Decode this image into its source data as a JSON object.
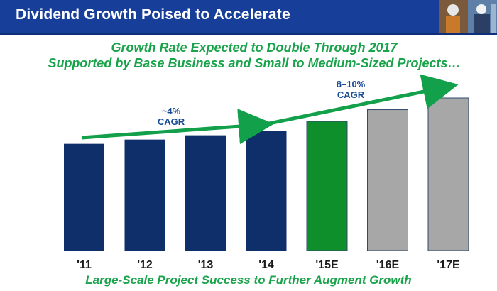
{
  "header": {
    "title": "Dividend Growth Poised to Accelerate"
  },
  "subtitle": {
    "line1": "Growth Rate Expected to Double Through 2017",
    "line2": "Supported by Base Business and Small to Medium-Sized Projects…"
  },
  "footer": "Large-Scale Project Success to Further Augment Growth",
  "colors": {
    "header": "#173f99",
    "actual": "#0f2f6b",
    "estimate_current": "#0e8f2c",
    "estimate_future": "#a7a7a7",
    "accent_green": "#19a34a",
    "arrow": "#12a04b"
  },
  "chart_data": {
    "type": "bar",
    "categories": [
      "'11",
      "'12",
      "'13",
      "'14",
      "'15E",
      "'16E",
      "'17E"
    ],
    "values": [
      1.0,
      1.04,
      1.08,
      1.12,
      1.21,
      1.32,
      1.43
    ],
    "kinds": [
      "actual",
      "actual",
      "actual",
      "actual",
      "estimate_current",
      "estimate_future",
      "estimate_future"
    ],
    "ylim": [
      0,
      1.45
    ],
    "title": "",
    "xlabel": "",
    "ylabel": "",
    "annotations": [
      {
        "line1": "~4%",
        "line2": "CAGR",
        "from": "'11",
        "to": "'14"
      },
      {
        "line1": "8–10%",
        "line2": "CAGR",
        "from": "'14",
        "to": "'17E"
      }
    ]
  }
}
